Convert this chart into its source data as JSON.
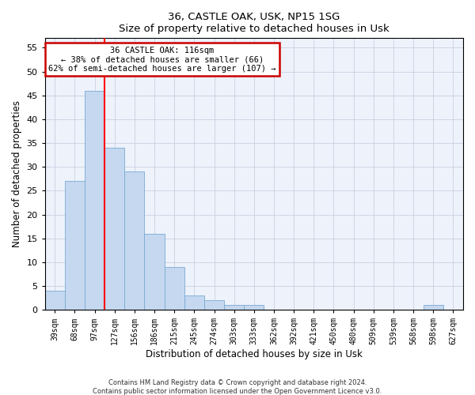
{
  "title1": "36, CASTLE OAK, USK, NP15 1SG",
  "title2": "Size of property relative to detached houses in Usk",
  "xlabel": "Distribution of detached houses by size in Usk",
  "ylabel": "Number of detached properties",
  "categories": [
    "39sqm",
    "68sqm",
    "97sqm",
    "127sqm",
    "156sqm",
    "186sqm",
    "215sqm",
    "245sqm",
    "274sqm",
    "303sqm",
    "333sqm",
    "362sqm",
    "392sqm",
    "421sqm",
    "450sqm",
    "480sqm",
    "509sqm",
    "539sqm",
    "568sqm",
    "598sqm",
    "627sqm"
  ],
  "values": [
    4,
    27,
    46,
    34,
    29,
    16,
    9,
    3,
    2,
    1,
    1,
    0,
    0,
    0,
    0,
    0,
    0,
    0,
    0,
    1,
    0
  ],
  "bar_color": "#c5d8f0",
  "bar_edge_color": "#7aaad0",
  "red_line_x": 2.5,
  "ylim": [
    0,
    57
  ],
  "yticks": [
    0,
    5,
    10,
    15,
    20,
    25,
    30,
    35,
    40,
    45,
    50,
    55
  ],
  "annotation_line1": "36 CASTLE OAK: 116sqm",
  "annotation_line2": "← 38% of detached houses are smaller (66)",
  "annotation_line3": "62% of semi-detached houses are larger (107) →",
  "annotation_box_color": "#ffffff",
  "annotation_box_edge_color": "#cc0000",
  "footer1": "Contains HM Land Registry data © Crown copyright and database right 2024.",
  "footer2": "Contains public sector information licensed under the Open Government Licence v3.0.",
  "background_color": "#eef2fb",
  "grid_color": "#c8d0e0"
}
